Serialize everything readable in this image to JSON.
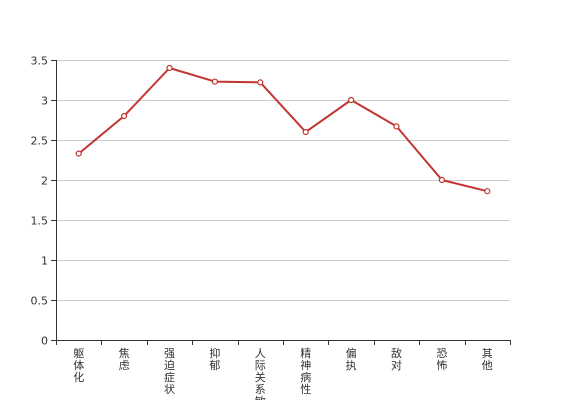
{
  "chart_data": {
    "type": "line",
    "categories": [
      "躯体化",
      "焦虑",
      "强迫症状",
      "抑郁",
      "人际关系敏感",
      "精神病性",
      "偏执",
      "敌对",
      "恐怖",
      "其他"
    ],
    "series": [
      {
        "values": [
          2.33,
          2.8,
          3.4,
          3.23,
          3.22,
          2.6,
          3.0,
          2.67,
          2.0,
          1.86
        ]
      }
    ],
    "y_ticks": [
      "0",
      "0.5",
      "1",
      "1.5",
      "2",
      "2.5",
      "3",
      "3.5"
    ],
    "ylim": [
      0,
      3.5
    ],
    "grid": true,
    "line_color": "#c23531",
    "title": "",
    "xlabel": "",
    "ylabel": ""
  }
}
